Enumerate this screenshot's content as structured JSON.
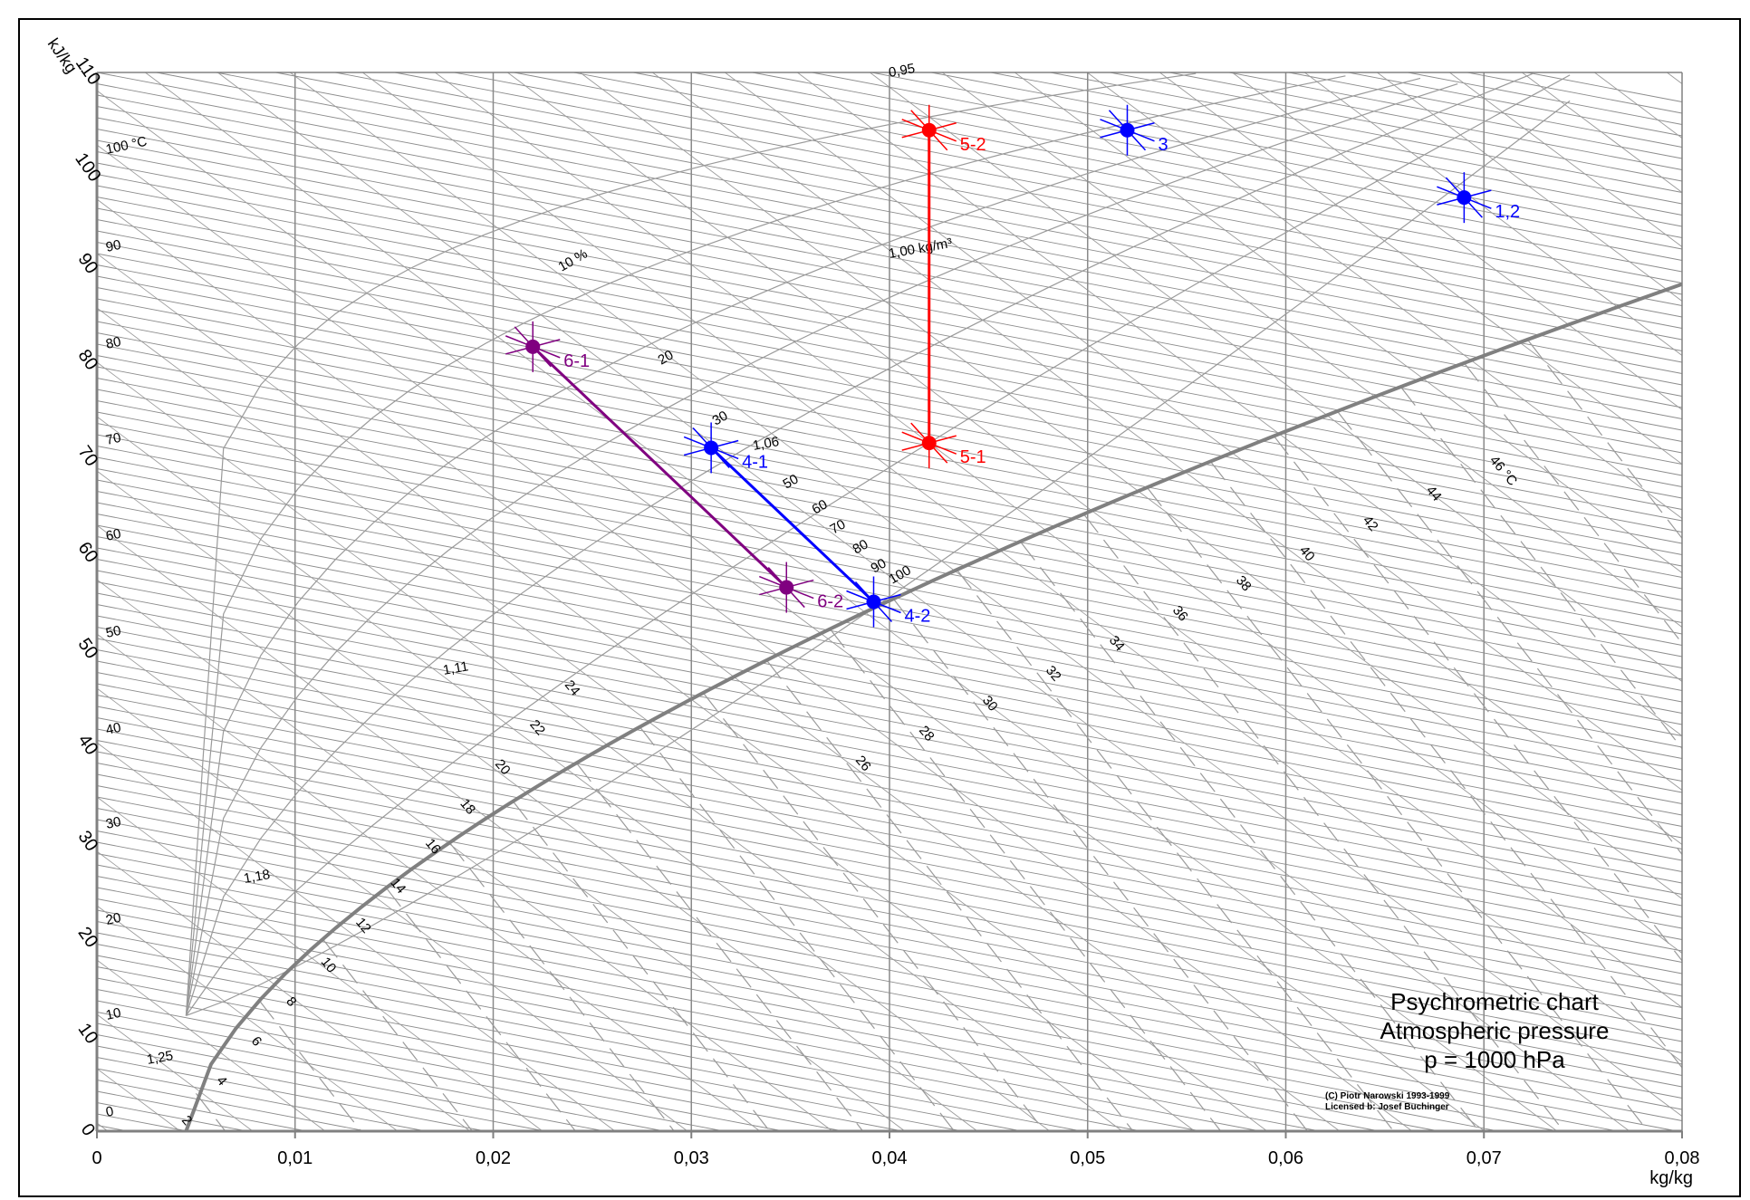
{
  "chart_data": {
    "type": "line",
    "x_axis": {
      "label": "kg/kg",
      "range": [
        0,
        0.08
      ],
      "ticks": [
        0,
        0.01,
        0.02,
        0.03,
        0.04,
        0.05,
        0.06,
        0.07,
        0.08
      ],
      "tick_labels": [
        "0",
        "0,01",
        "0,02",
        "0,03",
        "0,04",
        "0,05",
        "0,06",
        "0,07",
        "0,08"
      ]
    },
    "y_axis": {
      "label": "kJ/kg",
      "range": [
        0,
        110
      ],
      "ticks": [
        0,
        10,
        20,
        30,
        40,
        50,
        60,
        70,
        80,
        90,
        100,
        110
      ],
      "tick_labels": [
        "0",
        "10",
        "20",
        "30",
        "40",
        "50",
        "60",
        "70",
        "80",
        "90",
        "100",
        "110"
      ]
    },
    "grid": true,
    "enthalpy_line_labels": [
      "0",
      "10",
      "20",
      "30",
      "40",
      "50",
      "60",
      "70",
      "80",
      "90",
      "100 °C"
    ],
    "saturation_temperature_labels": [
      "2",
      "4",
      "6",
      "8",
      "10",
      "12",
      "14",
      "16",
      "18",
      "20",
      "22",
      "24",
      "26",
      "28",
      "30",
      "32",
      "34",
      "36",
      "38",
      "40",
      "42",
      "44",
      "46 °C"
    ],
    "relative_humidity_labels": [
      "10 %",
      "20",
      "30",
      "50",
      "60",
      "70",
      "80",
      "90",
      "100"
    ],
    "density_labels": [
      "1,25",
      "1,18",
      "1,11",
      "1,06",
      "1,00 kg/m³",
      "0,95"
    ],
    "points": [
      {
        "label": "1,2",
        "x": 0.069,
        "y": 97,
        "color": "#0000ff"
      },
      {
        "label": "3",
        "x": 0.052,
        "y": 104,
        "color": "#0000ff"
      },
      {
        "label": "4-1",
        "x": 0.031,
        "y": 71,
        "color": "#0000ff"
      },
      {
        "label": "4-2",
        "x": 0.0392,
        "y": 55,
        "color": "#0000ff"
      },
      {
        "label": "5-1",
        "x": 0.042,
        "y": 71.5,
        "color": "#ff0000"
      },
      {
        "label": "5-2",
        "x": 0.042,
        "y": 104,
        "color": "#ff0000"
      },
      {
        "label": "6-1",
        "x": 0.022,
        "y": 81.5,
        "color": "#800080"
      },
      {
        "label": "6-2",
        "x": 0.0348,
        "y": 56.5,
        "color": "#800080"
      }
    ],
    "processes": [
      {
        "from": "4-1",
        "to": "4-2",
        "color": "#0000ff"
      },
      {
        "from": "5-1",
        "to": "5-2",
        "color": "#ff0000"
      },
      {
        "from": "6-1",
        "to": "6-2",
        "color": "#800080"
      }
    ]
  },
  "notes": {
    "title_line1": "Psychrometric chart",
    "title_line2": "Atmospheric pressure",
    "title_line3": "p = 1000 hPa",
    "copyright_line1": "(C) Piotr Narowski 1993-1999",
    "copyright_line2": "Licensed  b: Josef Buchinger"
  }
}
